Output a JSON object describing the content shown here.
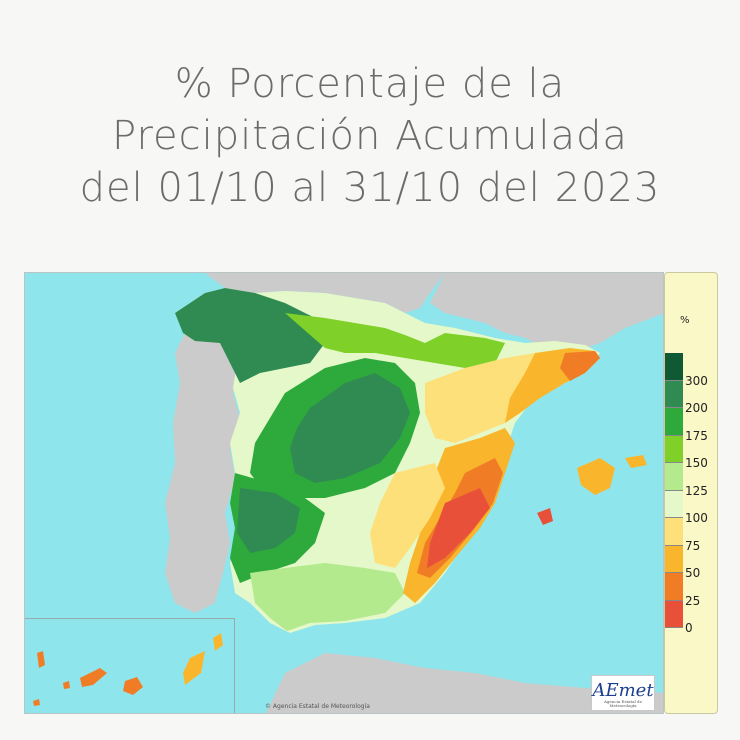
{
  "title": {
    "line1": "% Porcentaje de la",
    "line2": "Precipitación Acumulada",
    "line3": "del 01/10 al 31/10 del 2023"
  },
  "legend": {
    "unit": "%",
    "classes": [
      {
        "label": "300",
        "color": "#0f5a34"
      },
      {
        "label": "200",
        "color": "#2f8b52"
      },
      {
        "label": "175",
        "color": "#2eaa3c"
      },
      {
        "label": "150",
        "color": "#7fd12a"
      },
      {
        "label": "125",
        "color": "#b3ea8e"
      },
      {
        "label": "100",
        "color": "#e4f8c9"
      },
      {
        "label": "75",
        "color": "#fde07a"
      },
      {
        "label": "50",
        "color": "#f9b62c"
      },
      {
        "label": "25",
        "color": "#f07c26"
      },
      {
        "label": "0",
        "color": "#e8503a"
      }
    ]
  },
  "map": {
    "sea_color": "#8ee6ec",
    "land_other_color": "#cbcbcb",
    "credit": "© Agencia Estatal de Meteorología",
    "logo_text": "AEmet",
    "logo_sub": "Agencia Estatal de Meteorología"
  }
}
